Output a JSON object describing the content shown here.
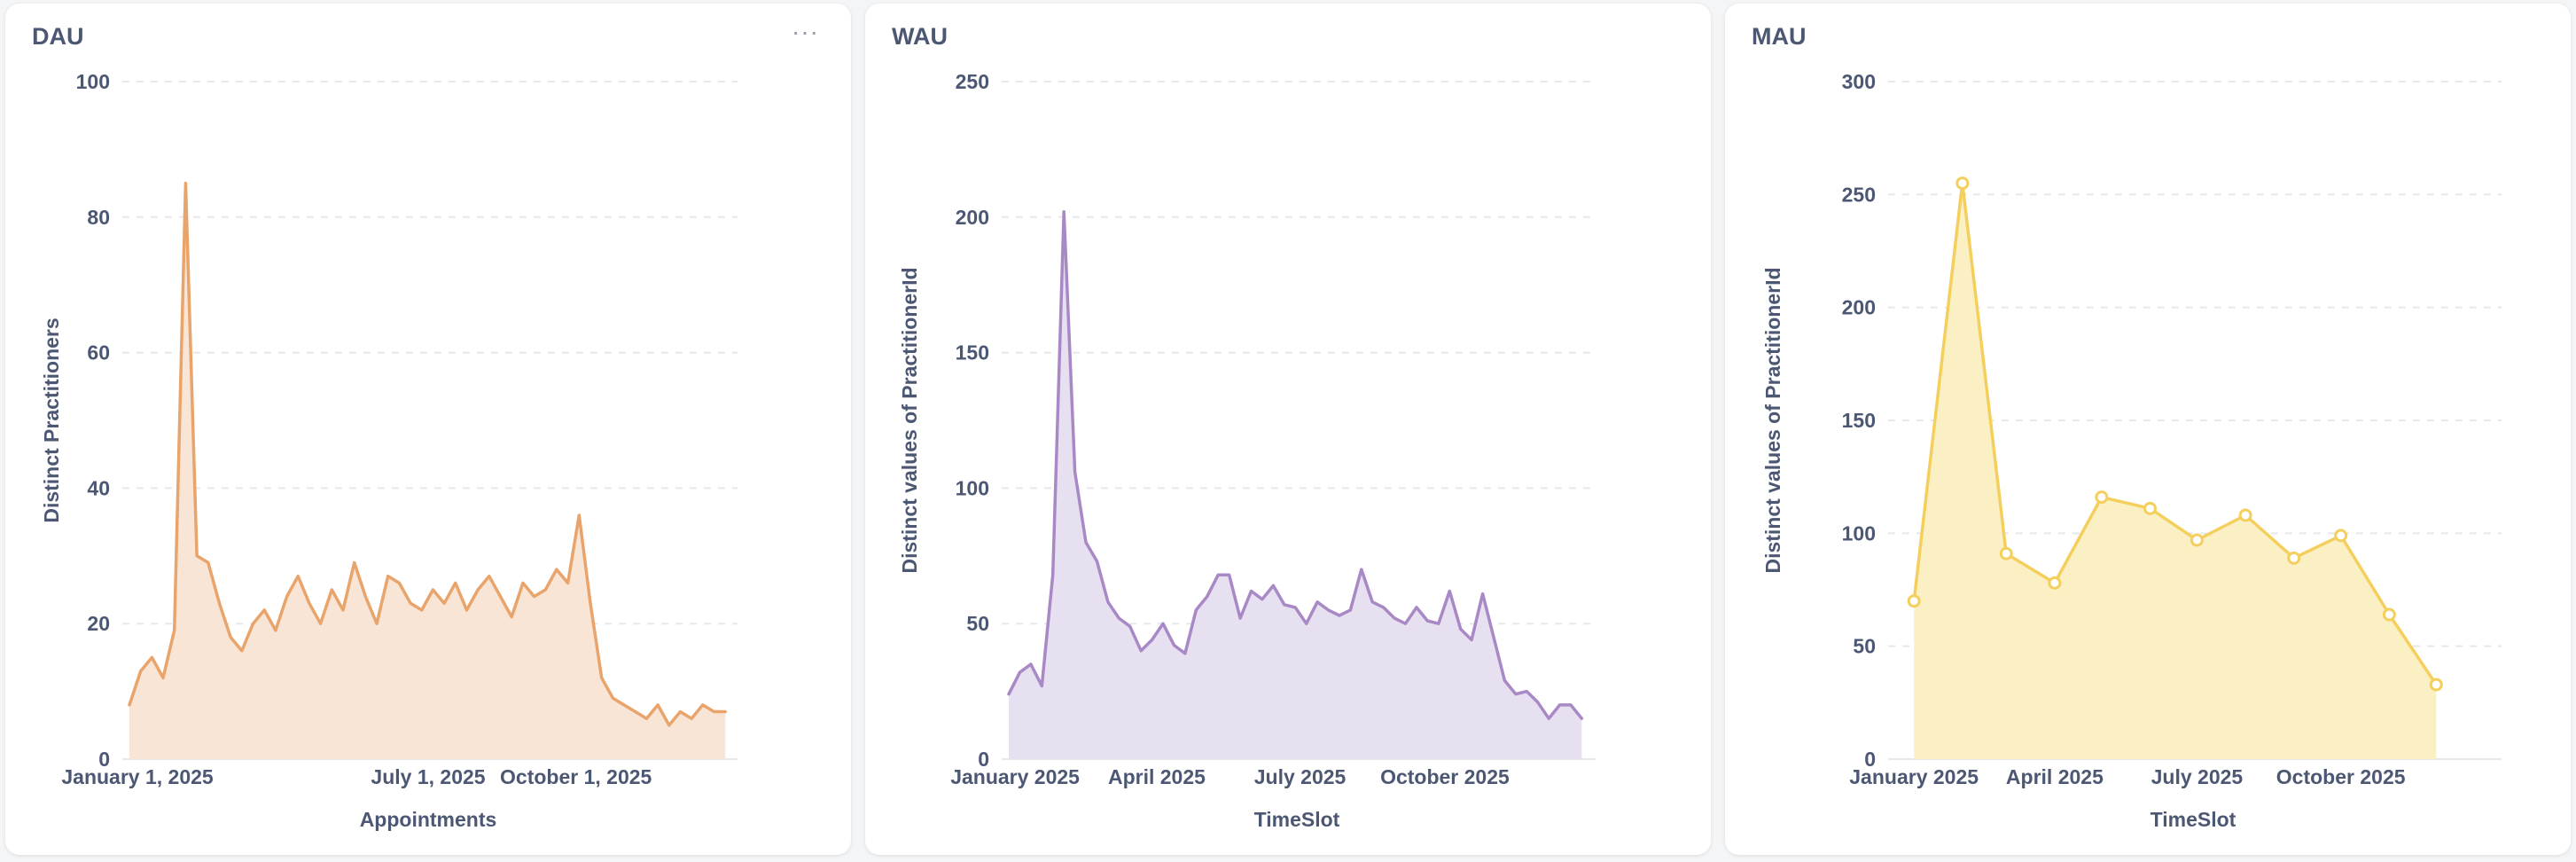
{
  "chart_data": [
    {
      "type": "area",
      "title": "DAU",
      "xlabel": "Appointments",
      "ylabel": "Distinct Practitioners",
      "ylim": [
        0,
        100
      ],
      "y_ticks": [
        0,
        20,
        40,
        60,
        80,
        100
      ],
      "x_date_range": [
        "2024-12-27",
        "2026-01-03"
      ],
      "x_ticks": [
        {
          "date": "2025-01-01",
          "label": "January 1, 2025"
        },
        {
          "date": "2025-07-01",
          "label": "July 1, 2025"
        },
        {
          "date": "2025-10-01",
          "label": "October 1, 2025"
        }
      ],
      "color": "#e9a46c",
      "fill": "#f9e5d6",
      "grid": true,
      "x": [
        "2024-12-27",
        "2025-01-03",
        "2025-01-10",
        "2025-01-17",
        "2025-01-24",
        "2025-01-31",
        "2025-02-07",
        "2025-02-14",
        "2025-02-21",
        "2025-02-28",
        "2025-03-07",
        "2025-03-14",
        "2025-03-21",
        "2025-03-28",
        "2025-04-04",
        "2025-04-11",
        "2025-04-18",
        "2025-04-25",
        "2025-05-02",
        "2025-05-09",
        "2025-05-16",
        "2025-05-23",
        "2025-05-30",
        "2025-06-06",
        "2025-06-13",
        "2025-06-20",
        "2025-06-27",
        "2025-07-04",
        "2025-07-11",
        "2025-07-18",
        "2025-07-25",
        "2025-08-01",
        "2025-08-08",
        "2025-08-15",
        "2025-08-22",
        "2025-08-29",
        "2025-09-05",
        "2025-09-12",
        "2025-09-19",
        "2025-09-26",
        "2025-10-03",
        "2025-10-10",
        "2025-10-17",
        "2025-10-24",
        "2025-10-31",
        "2025-11-07",
        "2025-11-14",
        "2025-11-21",
        "2025-11-28",
        "2025-12-05",
        "2025-12-12",
        "2025-12-19",
        "2025-12-26",
        "2026-01-02"
      ],
      "values": [
        8,
        13,
        15,
        12,
        19,
        85,
        30,
        29,
        23,
        18,
        16,
        20,
        22,
        19,
        24,
        27,
        23,
        20,
        25,
        22,
        29,
        24,
        20,
        27,
        26,
        23,
        22,
        25,
        23,
        26,
        22,
        25,
        27,
        24,
        21,
        26,
        24,
        25,
        28,
        26,
        36,
        23,
        12,
        9,
        8,
        7,
        6,
        8,
        5,
        7,
        6,
        8,
        7,
        7
      ]
    },
    {
      "type": "area",
      "title": "WAU",
      "xlabel": "TimeSlot",
      "ylabel": "Distinct values of PractitionerId",
      "ylim": [
        0,
        250
      ],
      "y_ticks": [
        0,
        50,
        100,
        150,
        200,
        250
      ],
      "x_date_range": [
        "2024-12-28",
        "2025-12-29"
      ],
      "x_ticks": [
        {
          "date": "2025-01-01",
          "label": "January 2025"
        },
        {
          "date": "2025-04-01",
          "label": "April 2025"
        },
        {
          "date": "2025-07-01",
          "label": "July 2025"
        },
        {
          "date": "2025-10-01",
          "label": "October 2025"
        }
      ],
      "color": "#a989c5",
      "fill": "#e6e0f0",
      "grid": true,
      "x": [
        "2024-12-28",
        "2025-01-04",
        "2025-01-11",
        "2025-01-18",
        "2025-01-25",
        "2025-02-01",
        "2025-02-08",
        "2025-02-15",
        "2025-02-22",
        "2025-03-01",
        "2025-03-08",
        "2025-03-15",
        "2025-03-22",
        "2025-03-29",
        "2025-04-05",
        "2025-04-12",
        "2025-04-19",
        "2025-04-26",
        "2025-05-03",
        "2025-05-10",
        "2025-05-17",
        "2025-05-24",
        "2025-05-31",
        "2025-06-07",
        "2025-06-14",
        "2025-06-21",
        "2025-06-28",
        "2025-07-05",
        "2025-07-12",
        "2025-07-19",
        "2025-07-26",
        "2025-08-02",
        "2025-08-09",
        "2025-08-16",
        "2025-08-23",
        "2025-08-30",
        "2025-09-06",
        "2025-09-13",
        "2025-09-20",
        "2025-09-27",
        "2025-10-04",
        "2025-10-11",
        "2025-10-18",
        "2025-10-25",
        "2025-11-01",
        "2025-11-08",
        "2025-11-15",
        "2025-11-22",
        "2025-11-29",
        "2025-12-06",
        "2025-12-13",
        "2025-12-20",
        "2025-12-27"
      ],
      "values": [
        24,
        32,
        35,
        27,
        68,
        202,
        106,
        80,
        73,
        58,
        52,
        49,
        40,
        44,
        50,
        42,
        39,
        55,
        60,
        68,
        68,
        52,
        62,
        59,
        64,
        57,
        56,
        50,
        58,
        55,
        53,
        55,
        70,
        58,
        56,
        52,
        50,
        56,
        51,
        50,
        62,
        48,
        44,
        61,
        45,
        29,
        24,
        25,
        21,
        15,
        20,
        20,
        15
      ]
    },
    {
      "type": "line",
      "title": "MAU",
      "xlabel": "TimeSlot",
      "ylabel": "Distinct values of PractitionerId",
      "ylim": [
        0,
        300
      ],
      "y_ticks": [
        0,
        50,
        100,
        150,
        200,
        250,
        300
      ],
      "x_date_range": [
        "2024-12-20",
        "2026-01-05"
      ],
      "x_ticks": [
        {
          "date": "2025-01-01",
          "label": "January 2025"
        },
        {
          "date": "2025-04-01",
          "label": "April 2025"
        },
        {
          "date": "2025-07-01",
          "label": "July 2025"
        },
        {
          "date": "2025-10-01",
          "label": "October 2025"
        }
      ],
      "color": "#f5cf5e",
      "fill": "#fbf0c4",
      "grid": true,
      "x": [
        "2025-01-01",
        "2025-02-01",
        "2025-03-01",
        "2025-04-01",
        "2025-05-01",
        "2025-06-01",
        "2025-07-01",
        "2025-08-01",
        "2025-09-01",
        "2025-10-01",
        "2025-11-01",
        "2025-12-01"
      ],
      "values": [
        70,
        255,
        91,
        78,
        116,
        111,
        97,
        108,
        89,
        99,
        64,
        33
      ]
    }
  ],
  "menu_icon_label": "···"
}
